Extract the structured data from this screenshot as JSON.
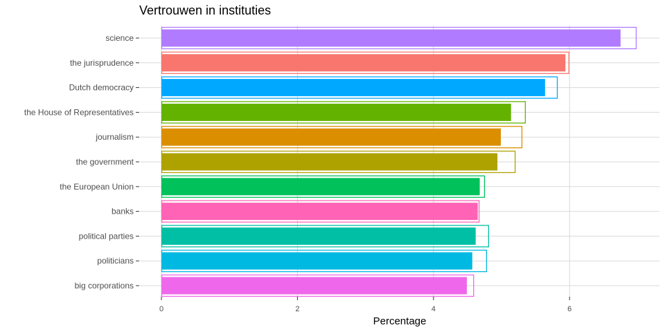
{
  "chart_data": {
    "type": "bar",
    "orientation": "horizontal",
    "title": "Vertrouwen in instituties",
    "xlabel": "Percentage",
    "ylabel": "",
    "xlim": [
      0,
      7.2
    ],
    "x_ticks": [
      0,
      2,
      4,
      6
    ],
    "grid": true,
    "legend": "none",
    "categories": [
      "science",
      "the jurisprudence",
      "Dutch democracy",
      "the House of Representatives",
      "journalism",
      "the government",
      "the European Union",
      "banks",
      "political parties",
      "politicians",
      "big corporations"
    ],
    "series": [
      {
        "values": [
          6.75,
          5.94,
          5.64,
          5.14,
          4.99,
          4.94,
          4.68,
          4.65,
          4.62,
          4.57,
          4.49
        ]
      },
      {
        "values": [
          6.98,
          5.99,
          5.82,
          5.35,
          5.3,
          5.2,
          4.75,
          4.67,
          4.81,
          4.78,
          4.59
        ]
      }
    ],
    "colors": [
      "#b07bff",
      "#f8766d",
      "#00a9ff",
      "#64b200",
      "#db8e00",
      "#aea200",
      "#00c15a",
      "#ff63b6",
      "#00bfa5",
      "#00b9e3",
      "#ef67eb"
    ]
  }
}
